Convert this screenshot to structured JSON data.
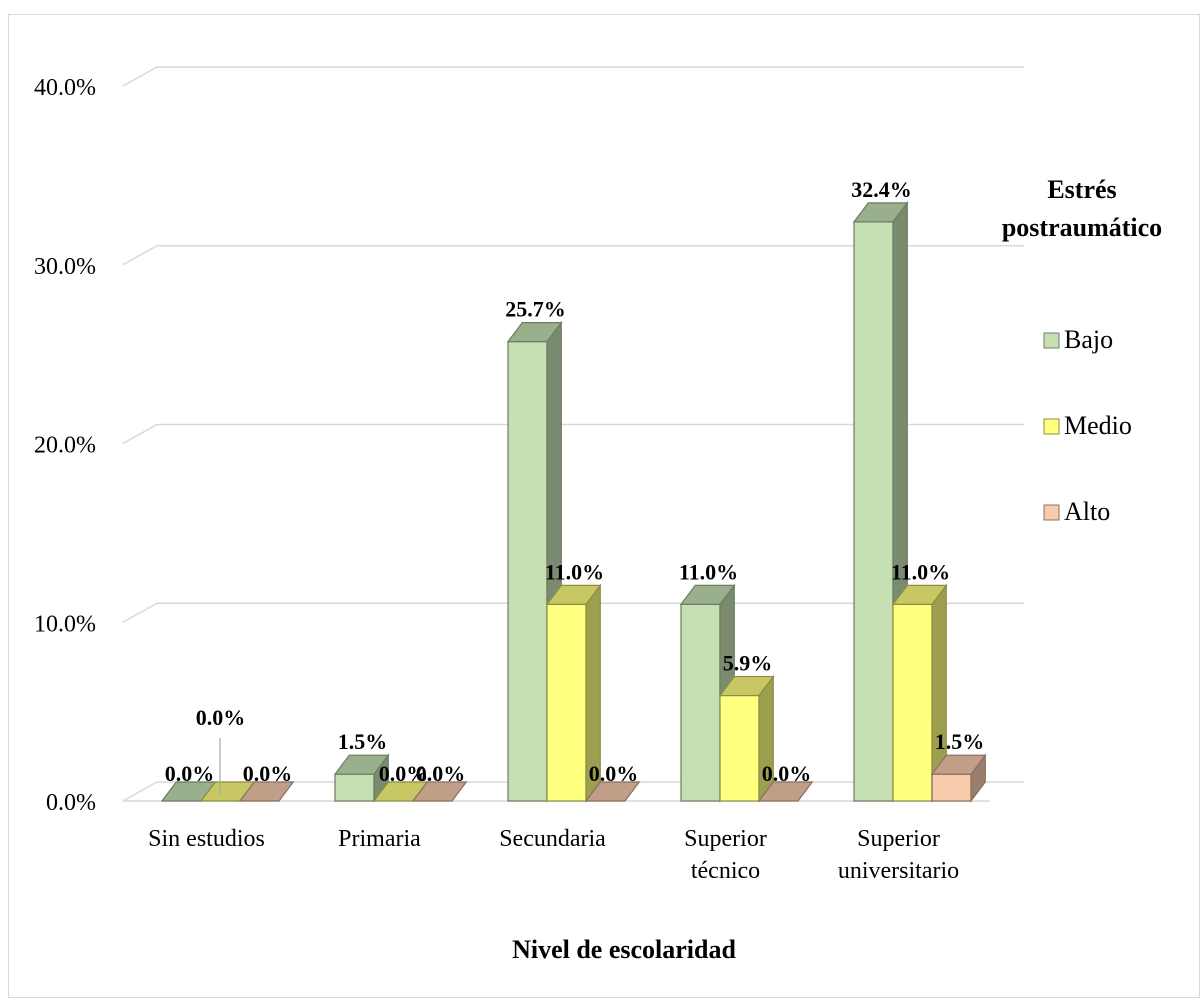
{
  "chart_data": {
    "type": "bar",
    "style": "3d-clustered-column",
    "xlabel": "Nivel de escolaridad",
    "categories": [
      [
        "Sin estudios"
      ],
      [
        "Primaria"
      ],
      [
        "Secundaria"
      ],
      [
        "Superior",
        "técnico"
      ],
      [
        "Superior",
        "universitario"
      ]
    ],
    "series": [
      {
        "name": "Bajo",
        "color": "#c6e0b4",
        "values": [
          0.0,
          1.5,
          25.7,
          11.0,
          32.4
        ]
      },
      {
        "name": "Medio",
        "color": "#ffff80",
        "values": [
          0.0,
          0.0,
          11.0,
          5.9,
          11.0
        ]
      },
      {
        "name": "Alto",
        "color": "#f8cbad",
        "values": [
          0.0,
          0.0,
          0.0,
          0.0,
          1.5
        ]
      }
    ],
    "data_labels": [
      [
        "0.0%",
        "1.5%",
        "25.7%",
        "11.0%",
        "32.4%"
      ],
      [
        "0.0%",
        "0.0%",
        "11.0%",
        "5.9%",
        "11.0%"
      ],
      [
        "0.0%",
        "0.0%",
        "0.0%",
        "0.0%",
        "1.5%"
      ]
    ],
    "yticks": [
      "0.0%",
      "10.0%",
      "20.0%",
      "30.0%",
      "40.0%"
    ],
    "ylim": [
      0,
      40
    ],
    "grid": true,
    "legend": {
      "title": [
        "Estrés",
        "postraumático"
      ],
      "position": "right"
    }
  }
}
